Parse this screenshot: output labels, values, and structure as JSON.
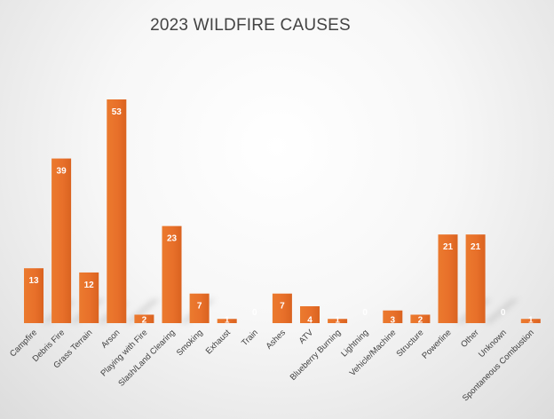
{
  "chart_data": {
    "type": "bar",
    "title": "2023 WILDFIRE CAUSES",
    "xlabel": "",
    "ylabel": "",
    "ylim": [
      0,
      53
    ],
    "grid": false,
    "legend": "none",
    "bar_color": "#E87025",
    "bar_color_light": "#F08A3E",
    "categories": [
      "Campfire",
      "Debris Fire",
      "Grass Terrain",
      "Arson",
      "Playing with Fire",
      "Slash/Land Clearing",
      "Smoking",
      "Exhaust",
      "Train",
      "Ashes",
      "ATV",
      "Blueberry Burning",
      "Lightning",
      "Vehicle/Machine",
      "Structure",
      "Powerline",
      "Other",
      "Unknown",
      "Spontaneous Combustion"
    ],
    "values": [
      13,
      39,
      12,
      53,
      2,
      23,
      7,
      1,
      0,
      7,
      4,
      1,
      0,
      3,
      2,
      21,
      21,
      0,
      1
    ],
    "data_labels": [
      "13",
      "39",
      "12",
      "53",
      "2",
      "23",
      "7",
      "1",
      "0",
      "7",
      "4",
      "1",
      "0",
      "3",
      "2",
      "21",
      "21",
      "0",
      "1"
    ]
  }
}
